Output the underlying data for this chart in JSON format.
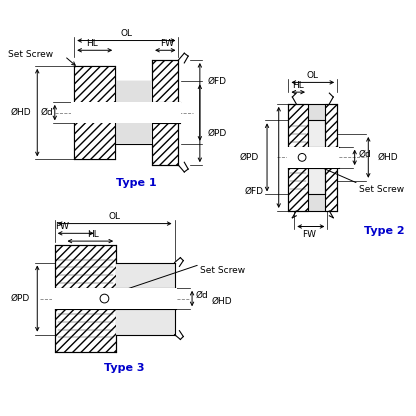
{
  "bg_color": "#ffffff",
  "line_color": "#000000",
  "type_color": "#0000cc",
  "title1": "Type 1",
  "title2": "Type 2",
  "title3": "Type 3",
  "font_size_label": 6.5,
  "font_size_type": 8
}
